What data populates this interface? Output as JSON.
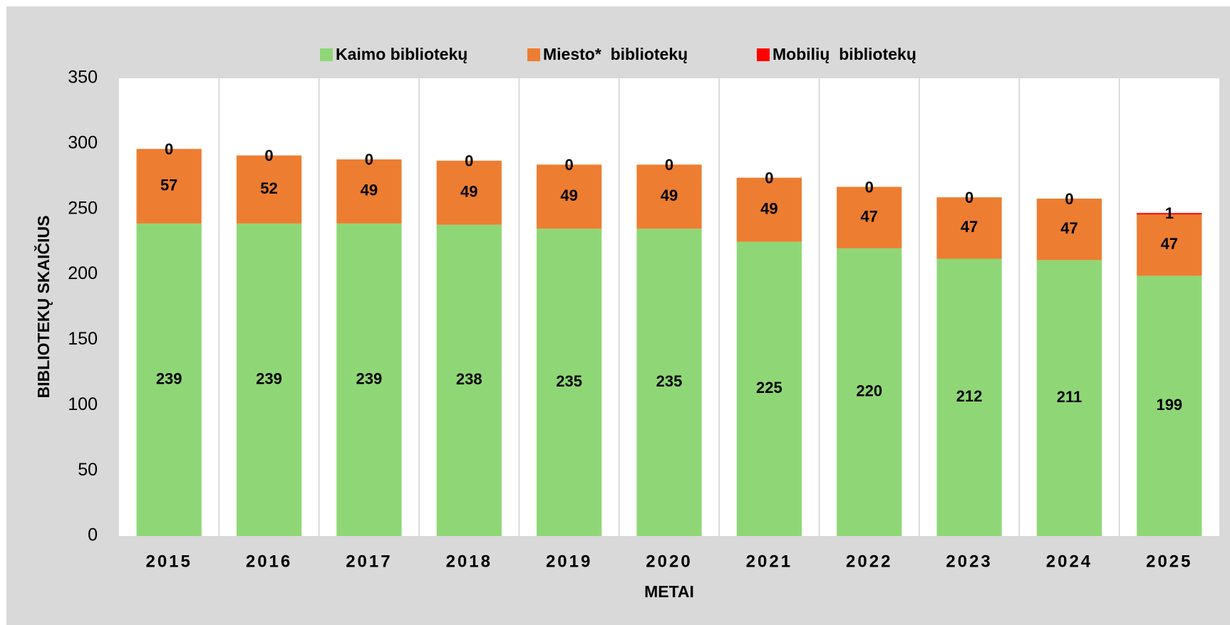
{
  "chart_data": {
    "type": "stacked_bar",
    "categories": [
      "2015",
      "2016",
      "2017",
      "2018",
      "2019",
      "2020",
      "2021",
      "2022",
      "2023",
      "2024",
      "2025"
    ],
    "series": [
      {
        "name": "Kaimo bibliotekų",
        "color": "#8fd776",
        "values": [
          239,
          239,
          239,
          238,
          235,
          235,
          225,
          220,
          212,
          211,
          199
        ]
      },
      {
        "name": "Miesto*  bibliotekų",
        "color": "#ed7d31",
        "values": [
          57,
          52,
          49,
          49,
          49,
          49,
          49,
          47,
          47,
          47,
          47
        ]
      },
      {
        "name": "Mobilių  bibliotekų",
        "color": "#ff0000",
        "values": [
          0,
          0,
          0,
          0,
          0,
          0,
          0,
          0,
          0,
          0,
          1
        ]
      }
    ],
    "xlabel": "METAI",
    "ylabel": "BIBLIOTEKŲ SKAIČIUS",
    "ylim": [
      0,
      350
    ],
    "yticks": [
      0,
      50,
      100,
      150,
      200,
      250,
      300,
      350
    ],
    "legend": "top"
  }
}
